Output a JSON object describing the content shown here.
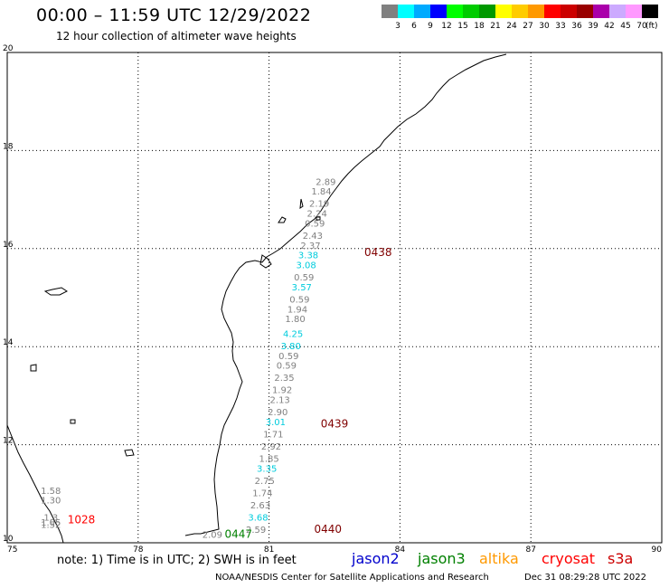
{
  "header": {
    "title": "00:00 – 11:59 UTC 12/29/2022",
    "subtitle": "12 hour collection of altimeter wave heights"
  },
  "colorbar": {
    "colors": [
      "#808080",
      "#00ffff",
      "#00aaff",
      "#0000ff",
      "#00ff00",
      "#00cc00",
      "#009900",
      "#ffff00",
      "#ffcc00",
      "#ff9900",
      "#ff0000",
      "#cc0000",
      "#990000",
      "#aa00aa",
      "#ccaaff",
      "#ff99ff",
      "#000000"
    ],
    "labels": [
      "3",
      "6",
      "9",
      "12",
      "15",
      "18",
      "21",
      "24",
      "27",
      "30",
      "33",
      "36",
      "39",
      "42",
      "45",
      "70"
    ],
    "unit": "(ft)"
  },
  "map": {
    "x_labels": [
      "75",
      "78",
      "81",
      "84",
      "87",
      "90"
    ],
    "y_labels": [
      "10",
      "12",
      "14",
      "16",
      "18",
      "20"
    ],
    "colors": {
      "gray": "#808080",
      "cyan": "#00ccdd",
      "darkred": "#800000",
      "red": "#ff0000",
      "green": "#008000"
    }
  },
  "chart_data": {
    "type": "scatter",
    "x_range": [
      75,
      90
    ],
    "y_range": [
      10,
      20
    ],
    "grid": true,
    "tracks": [
      {
        "label": "0438",
        "color": "darkred",
        "label_pos": [
          83.5,
          15.85
        ],
        "points": [
          {
            "lon": 82.3,
            "lat": 17.3,
            "text": "2.89",
            "color": "gray"
          },
          {
            "lon": 82.2,
            "lat": 17.1,
            "text": "1.84",
            "color": "gray"
          },
          {
            "lon": 82.15,
            "lat": 16.85,
            "text": "2.19",
            "color": "gray"
          },
          {
            "lon": 82.1,
            "lat": 16.65,
            "text": "2.24",
            "color": "gray"
          },
          {
            "lon": 82.05,
            "lat": 16.45,
            "text": "0.59",
            "color": "gray"
          },
          {
            "lon": 82.0,
            "lat": 16.2,
            "text": "2.43",
            "color": "gray"
          },
          {
            "lon": 81.95,
            "lat": 16.0,
            "text": "2.37",
            "color": "gray"
          },
          {
            "lon": 81.9,
            "lat": 15.8,
            "text": "3.38",
            "color": "cyan"
          },
          {
            "lon": 81.85,
            "lat": 15.6,
            "text": "3.08",
            "color": "cyan"
          },
          {
            "lon": 81.8,
            "lat": 15.35,
            "text": "0.59",
            "color": "gray"
          },
          {
            "lon": 81.75,
            "lat": 15.15,
            "text": "3.57",
            "color": "cyan"
          },
          {
            "lon": 81.7,
            "lat": 14.9,
            "text": "0.59",
            "color": "gray"
          },
          {
            "lon": 81.65,
            "lat": 14.7,
            "text": "1.94",
            "color": "gray"
          },
          {
            "lon": 81.6,
            "lat": 14.5,
            "text": "1.80",
            "color": "gray"
          },
          {
            "lon": 81.55,
            "lat": 14.2,
            "text": "4.25",
            "color": "cyan"
          },
          {
            "lon": 81.5,
            "lat": 13.95,
            "text": "3.80",
            "color": "cyan"
          },
          {
            "lon": 81.45,
            "lat": 13.75,
            "text": "0.59",
            "color": "gray"
          },
          {
            "lon": 81.4,
            "lat": 13.55,
            "text": "0.59",
            "color": "gray"
          },
          {
            "lon": 81.35,
            "lat": 13.3,
            "text": "2.35",
            "color": "gray"
          },
          {
            "lon": 81.3,
            "lat": 13.05,
            "text": "1.92",
            "color": "gray"
          },
          {
            "lon": 81.25,
            "lat": 12.85,
            "text": "2.13",
            "color": "gray"
          },
          {
            "lon": 81.2,
            "lat": 12.6,
            "text": "2.90",
            "color": "gray"
          }
        ]
      },
      {
        "label": "0439",
        "color": "darkred",
        "label_pos": [
          82.5,
          12.35
        ],
        "points": [
          {
            "lon": 81.15,
            "lat": 12.4,
            "text": "3.01",
            "color": "cyan"
          },
          {
            "lon": 81.1,
            "lat": 12.15,
            "text": "1.71",
            "color": "gray"
          },
          {
            "lon": 81.05,
            "lat": 11.9,
            "text": "2.92",
            "color": "gray"
          },
          {
            "lon": 81.0,
            "lat": 11.65,
            "text": "1.85",
            "color": "gray"
          },
          {
            "lon": 80.95,
            "lat": 11.45,
            "text": "3.35",
            "color": "cyan"
          },
          {
            "lon": 80.9,
            "lat": 11.2,
            "text": "2.75",
            "color": "gray"
          },
          {
            "lon": 80.85,
            "lat": 10.95,
            "text": "1.74",
            "color": "gray"
          },
          {
            "lon": 80.8,
            "lat": 10.7,
            "text": "2.63",
            "color": "gray"
          },
          {
            "lon": 80.75,
            "lat": 10.45,
            "text": "3.68",
            "color": "cyan"
          },
          {
            "lon": 80.7,
            "lat": 10.2,
            "text": "2.59",
            "color": "gray"
          }
        ]
      },
      {
        "label": "0440",
        "color": "darkred",
        "label_pos": [
          82.35,
          10.2
        ],
        "points": []
      },
      {
        "label": "1028",
        "color": "red",
        "label_pos": [
          76.7,
          10.4
        ],
        "points": [
          {
            "lon": 76.0,
            "lat": 11.0,
            "text": "1.58",
            "color": "gray"
          },
          {
            "lon": 76.0,
            "lat": 10.8,
            "text": "1.30",
            "color": "gray"
          },
          {
            "lon": 76.0,
            "lat": 10.45,
            "text": "1.3",
            "color": "gray"
          },
          {
            "lon": 76.0,
            "lat": 10.35,
            "text": "1.05",
            "color": "gray"
          },
          {
            "lon": 76.0,
            "lat": 10.3,
            "text": "1.52",
            "color": "gray"
          }
        ]
      },
      {
        "label": "0447",
        "color": "green",
        "label_pos": [
          80.3,
          10.1
        ],
        "points": [
          {
            "lon": 79.7,
            "lat": 10.1,
            "text": "2.09",
            "color": "gray"
          }
        ]
      }
    ]
  },
  "legend": {
    "note": "note: 1) Time is in UTC; 2) SWH is in feet",
    "items": [
      {
        "label": "jason2",
        "color": "#0000cc"
      },
      {
        "label": "jason3",
        "color": "#008000"
      },
      {
        "label": "altika",
        "color": "#ff9900"
      },
      {
        "label": "cryosat",
        "color": "#ff0000"
      },
      {
        "label": "s3a",
        "color": "#cc0000"
      }
    ]
  },
  "footer": {
    "org": "NOAA/NESDIS Center for Satellite Applications and Research",
    "timestamp": "Dec 31 08:29:28 UTC 2022"
  }
}
